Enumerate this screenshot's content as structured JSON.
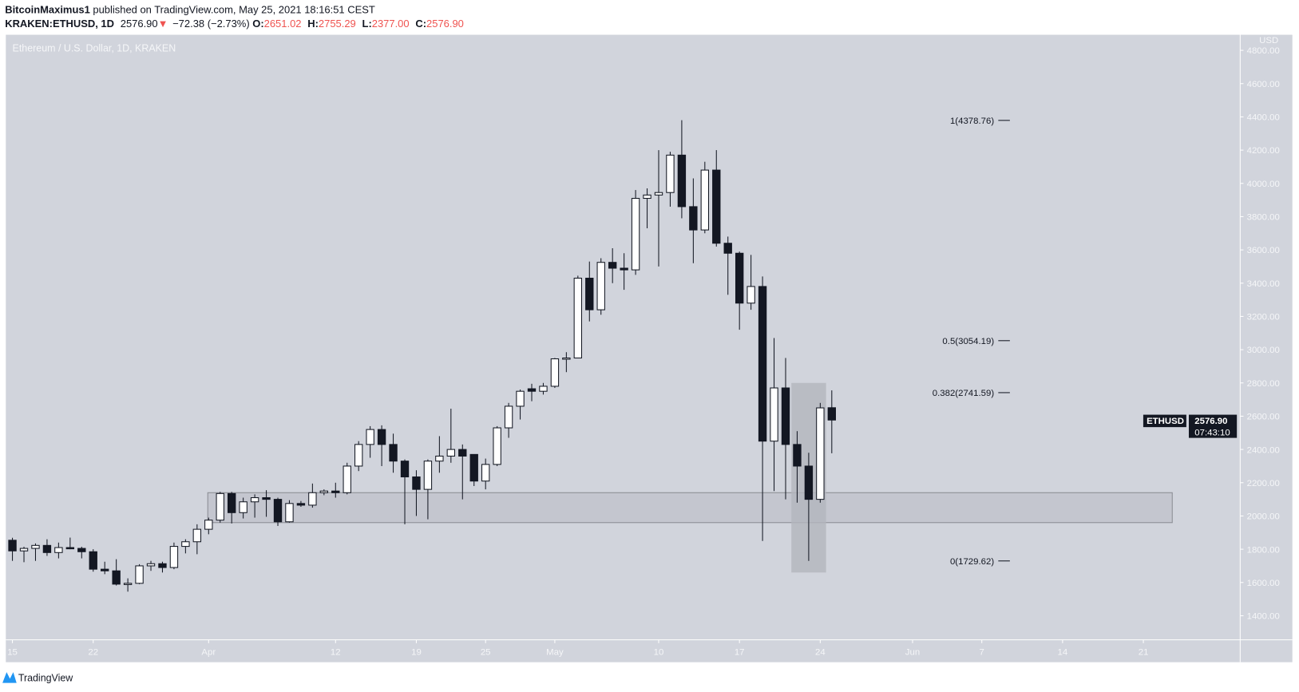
{
  "header": {
    "publisher": "BitcoinMaximus1",
    "published_text": "published on TradingView.com, May 25, 2021 18:16:51 CEST",
    "symbol": "KRAKEN:ETHUSD, 1D",
    "last": "2576.90",
    "change": "−72.38 (−2.73%)",
    "o_label": "O:",
    "o": "2651.02",
    "h_label": "H:",
    "h": "2755.29",
    "l_label": "L:",
    "l": "2377.00",
    "c_label": "C:",
    "c": "2576.90"
  },
  "chart_title": "Ethereum / U.S. Dollar, 1D, KRAKEN",
  "currency": "USD",
  "price_tag": {
    "symbol": "ETHUSD",
    "price": "2576.90",
    "countdown": "07:43:10"
  },
  "footer": {
    "brand": "TradingView"
  },
  "colors": {
    "background": "#d1d4dc",
    "bull": "#ffffff",
    "bear": "#131722",
    "down": "#ef5350",
    "zone": "#c4c6cf",
    "highlight": "#b3b5bd"
  },
  "chart_data": {
    "type": "candlestick",
    "ylim": [
      1300,
      4850
    ],
    "y_ticks": [
      "4800.00",
      "4600.00",
      "4400.00",
      "4200.00",
      "4000.00",
      "3800.00",
      "3600.00",
      "3400.00",
      "3200.00",
      "3000.00",
      "2800.00",
      "2600.00",
      "2400.00",
      "2200.00",
      "2000.00",
      "1800.00",
      "1600.00",
      "1400.00"
    ],
    "x_ticks": [
      {
        "label": "15",
        "date": "2021-03-15"
      },
      {
        "label": "22",
        "date": "2021-03-22"
      },
      {
        "label": "Apr",
        "date": "2021-04-01"
      },
      {
        "label": "12",
        "date": "2021-04-12"
      },
      {
        "label": "19",
        "date": "2021-04-19"
      },
      {
        "label": "25",
        "date": "2021-04-25"
      },
      {
        "label": "May",
        "date": "2021-05-01"
      },
      {
        "label": "10",
        "date": "2021-05-10"
      },
      {
        "label": "17",
        "date": "2021-05-17"
      },
      {
        "label": "24",
        "date": "2021-05-24"
      },
      {
        "label": "Jun",
        "date": "2021-06-01"
      },
      {
        "label": "7",
        "date": "2021-06-07"
      },
      {
        "label": "14",
        "date": "2021-06-14"
      },
      {
        "label": "21",
        "date": "2021-06-21"
      }
    ],
    "candle_fields": [
      "date",
      "open",
      "high",
      "low",
      "close"
    ],
    "candles": [
      [
        "2021-03-15",
        1854,
        1869,
        1730,
        1790
      ],
      [
        "2021-03-16",
        1790,
        1815,
        1722,
        1805
      ],
      [
        "2021-03-17",
        1805,
        1835,
        1730,
        1823
      ],
      [
        "2021-03-18",
        1823,
        1860,
        1760,
        1780
      ],
      [
        "2021-03-19",
        1780,
        1840,
        1745,
        1810
      ],
      [
        "2021-03-20",
        1810,
        1870,
        1800,
        1805
      ],
      [
        "2021-03-21",
        1805,
        1815,
        1745,
        1785
      ],
      [
        "2021-03-22",
        1785,
        1800,
        1665,
        1680
      ],
      [
        "2021-03-23",
        1680,
        1725,
        1650,
        1670
      ],
      [
        "2021-03-24",
        1670,
        1740,
        1582,
        1590
      ],
      [
        "2021-03-25",
        1590,
        1625,
        1545,
        1595
      ],
      [
        "2021-03-26",
        1595,
        1710,
        1590,
        1700
      ],
      [
        "2021-03-27",
        1700,
        1730,
        1670,
        1713
      ],
      [
        "2021-03-28",
        1713,
        1725,
        1660,
        1690
      ],
      [
        "2021-03-29",
        1690,
        1840,
        1680,
        1817
      ],
      [
        "2021-03-30",
        1817,
        1860,
        1775,
        1845
      ],
      [
        "2021-03-31",
        1845,
        1950,
        1770,
        1920
      ],
      [
        "2021-04-01",
        1920,
        1990,
        1890,
        1975
      ],
      [
        "2021-04-02",
        1975,
        2145,
        1960,
        2135
      ],
      [
        "2021-04-03",
        2135,
        2145,
        1955,
        2020
      ],
      [
        "2021-04-04",
        2020,
        2110,
        1985,
        2085
      ],
      [
        "2021-04-05",
        2085,
        2130,
        1990,
        2110
      ],
      [
        "2021-04-06",
        2110,
        2155,
        1995,
        2100
      ],
      [
        "2021-04-07",
        2100,
        2110,
        1940,
        1965
      ],
      [
        "2021-04-08",
        1965,
        2095,
        1960,
        2075
      ],
      [
        "2021-04-09",
        2075,
        2090,
        2055,
        2065
      ],
      [
        "2021-04-10",
        2065,
        2195,
        2050,
        2140
      ],
      [
        "2021-04-11",
        2140,
        2160,
        2125,
        2150
      ],
      [
        "2021-04-12",
        2150,
        2200,
        2110,
        2140
      ],
      [
        "2021-04-13",
        2140,
        2320,
        2130,
        2300
      ],
      [
        "2021-04-14",
        2300,
        2450,
        2270,
        2430
      ],
      [
        "2021-04-15",
        2430,
        2540,
        2350,
        2520
      ],
      [
        "2021-04-16",
        2520,
        2545,
        2300,
        2430
      ],
      [
        "2021-04-17",
        2430,
        2495,
        2260,
        2330
      ],
      [
        "2021-04-18",
        2330,
        2340,
        1950,
        2235
      ],
      [
        "2021-04-19",
        2235,
        2275,
        2000,
        2160
      ],
      [
        "2021-04-20",
        2160,
        2340,
        1980,
        2330
      ],
      [
        "2021-04-21",
        2330,
        2480,
        2260,
        2360
      ],
      [
        "2021-04-22",
        2360,
        2645,
        2320,
        2400
      ],
      [
        "2021-04-23",
        2400,
        2430,
        2100,
        2360
      ],
      [
        "2021-04-24",
        2370,
        2370,
        2180,
        2210
      ],
      [
        "2021-04-25",
        2210,
        2345,
        2160,
        2310
      ],
      [
        "2021-04-26",
        2310,
        2540,
        2300,
        2530
      ],
      [
        "2021-04-27",
        2530,
        2680,
        2470,
        2660
      ],
      [
        "2021-04-28",
        2660,
        2760,
        2580,
        2750
      ],
      [
        "2021-04-29",
        2765,
        2795,
        2690,
        2750
      ],
      [
        "2021-04-30",
        2750,
        2800,
        2730,
        2780
      ],
      [
        "2021-05-01",
        2780,
        2950,
        2770,
        2945
      ],
      [
        "2021-05-02",
        2945,
        2985,
        2865,
        2950
      ],
      [
        "2021-05-03",
        2950,
        3445,
        2950,
        3430
      ],
      [
        "2021-05-04",
        3430,
        3530,
        3170,
        3240
      ],
      [
        "2021-05-05",
        3240,
        3550,
        3210,
        3525
      ],
      [
        "2021-05-06",
        3525,
        3610,
        3400,
        3490
      ],
      [
        "2021-05-07",
        3490,
        3580,
        3360,
        3480
      ],
      [
        "2021-05-08",
        3480,
        3960,
        3450,
        3910
      ],
      [
        "2021-05-09",
        3910,
        3970,
        3730,
        3930
      ],
      [
        "2021-05-10",
        3930,
        4200,
        3500,
        3945
      ],
      [
        "2021-05-11",
        3945,
        4190,
        3860,
        4170
      ],
      [
        "2021-05-12",
        4170,
        4380,
        3790,
        3860
      ],
      [
        "2021-05-13",
        3860,
        4030,
        3520,
        3720
      ],
      [
        "2021-05-14",
        3720,
        4130,
        3700,
        4080
      ],
      [
        "2021-05-15",
        4080,
        4200,
        3620,
        3640
      ],
      [
        "2021-05-16",
        3640,
        3680,
        3330,
        3580
      ],
      [
        "2021-05-17",
        3580,
        3590,
        3120,
        3280
      ],
      [
        "2021-05-18",
        3280,
        3570,
        3240,
        3380
      ],
      [
        "2021-05-19",
        3380,
        3440,
        1850,
        2450
      ],
      [
        "2021-05-20",
        2450,
        3070,
        2150,
        2770
      ],
      [
        "2021-05-21",
        2770,
        2950,
        2100,
        2430
      ],
      [
        "2021-05-22",
        2430,
        2510,
        2080,
        2300
      ],
      [
        "2021-05-23",
        2300,
        2380,
        1730,
        2100
      ],
      [
        "2021-05-24",
        2100,
        2680,
        2080,
        2650
      ],
      [
        "2021-05-25",
        2651.02,
        2755.29,
        2377.0,
        2576.9
      ]
    ],
    "fib_levels": [
      {
        "label": "1(4378.76)",
        "value": 4378.76
      },
      {
        "label": "0.5(3054.19)",
        "value": 3054.19
      },
      {
        "label": "0.382(2741.59)",
        "value": 2741.59
      },
      {
        "label": "0(1729.62)",
        "value": 1729.62
      }
    ],
    "support_zone": {
      "from": "2021-04-01",
      "to": "2021-06-22",
      "low": 1960,
      "high": 2140
    },
    "highlight_box": {
      "from": "2021-05-22",
      "to": "2021-05-24",
      "low": 1660,
      "high": 2800
    }
  }
}
